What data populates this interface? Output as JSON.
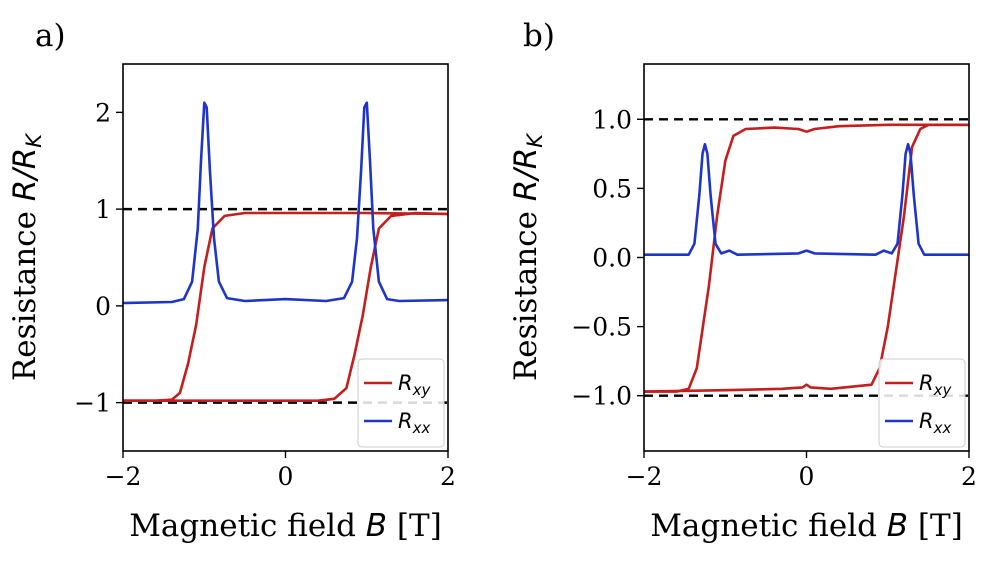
{
  "colors": {
    "rxy": "#c41e1e",
    "rxx": "#1f35c9",
    "dashed": "#000000"
  },
  "chart_data": [
    {
      "type": "line",
      "panel_label": "a)",
      "xlabel_text": "Magnetic field ",
      "xlabel_sym": "B",
      "xlabel_unit": " [T]",
      "ylabel_text": "Resistance ",
      "ylabel_sym": "R/R",
      "ylabel_sub": "K",
      "xlim": [
        -2,
        2
      ],
      "ylim": [
        -1.5,
        2.5
      ],
      "xticks": [
        -2,
        0,
        2
      ],
      "xtick_labels": [
        "−2",
        "0",
        "2"
      ],
      "yticks": [
        -1,
        0,
        1,
        2
      ],
      "ytick_labels": [
        "−1",
        "0",
        "1",
        "2"
      ],
      "hlines": [
        1,
        -1
      ],
      "legend": {
        "position": "lower-right",
        "entries": [
          {
            "sym": "R",
            "sub": "xy"
          },
          {
            "sym": "R",
            "sub": "xx"
          }
        ]
      },
      "series": [
        {
          "name": "Rxy",
          "color_key": "rxy",
          "segments": [
            [
              [
                -2,
                -0.98
              ],
              [
                -1.6,
                -0.98
              ],
              [
                -1.4,
                -0.97
              ],
              [
                -1.3,
                -0.9
              ],
              [
                -1.2,
                -0.6
              ],
              [
                -1.1,
                -0.2
              ],
              [
                -1.0,
                0.4
              ],
              [
                -0.9,
                0.8
              ],
              [
                -0.75,
                0.93
              ],
              [
                -0.5,
                0.96
              ],
              [
                -0.2,
                0.96
              ],
              [
                0.5,
                0.96
              ],
              [
                1.0,
                0.96
              ],
              [
                2,
                0.95
              ]
            ],
            [
              [
                -2,
                -0.98
              ],
              [
                -1.0,
                -0.98
              ],
              [
                0,
                -0.98
              ],
              [
                0.4,
                -0.98
              ],
              [
                0.6,
                -0.96
              ],
              [
                0.75,
                -0.85
              ],
              [
                0.85,
                -0.5
              ],
              [
                0.95,
                -0.1
              ],
              [
                1.05,
                0.4
              ],
              [
                1.15,
                0.8
              ],
              [
                1.3,
                0.93
              ],
              [
                1.6,
                0.96
              ],
              [
                2,
                0.95
              ]
            ]
          ]
        },
        {
          "name": "Rxx",
          "color_key": "rxx",
          "segments": [
            [
              [
                -2,
                0.03
              ],
              [
                -1.4,
                0.04
              ],
              [
                -1.25,
                0.07
              ],
              [
                -1.15,
                0.25
              ],
              [
                -1.08,
                0.8
              ],
              [
                -1.04,
                1.5
              ],
              [
                -1.0,
                2.1
              ],
              [
                -0.97,
                2.05
              ],
              [
                -0.93,
                1.4
              ],
              [
                -0.88,
                0.7
              ],
              [
                -0.82,
                0.25
              ],
              [
                -0.72,
                0.08
              ],
              [
                -0.5,
                0.05
              ],
              [
                0,
                0.07
              ],
              [
                0.5,
                0.05
              ],
              [
                0.72,
                0.08
              ],
              [
                0.82,
                0.25
              ],
              [
                0.88,
                0.7
              ],
              [
                0.93,
                1.4
              ],
              [
                0.97,
                2.05
              ],
              [
                1.0,
                2.1
              ],
              [
                1.04,
                1.5
              ],
              [
                1.08,
                0.8
              ],
              [
                1.15,
                0.25
              ],
              [
                1.25,
                0.07
              ],
              [
                1.4,
                0.05
              ],
              [
                2,
                0.06
              ]
            ]
          ]
        }
      ]
    },
    {
      "type": "line",
      "panel_label": "b)",
      "xlabel_text": "Magnetic field ",
      "xlabel_sym": "B",
      "xlabel_unit": " [T]",
      "ylabel_text": "Resistance ",
      "ylabel_sym": "R/R",
      "ylabel_sub": "K",
      "xlim": [
        -2,
        2
      ],
      "ylim": [
        -1.4,
        1.4
      ],
      "xticks": [
        -2,
        0,
        2
      ],
      "xtick_labels": [
        "−2",
        "0",
        "2"
      ],
      "yticks": [
        -1.0,
        -0.5,
        0.0,
        0.5,
        1.0
      ],
      "ytick_labels": [
        "−1.0",
        "−0.5",
        "0.0",
        "0.5",
        "1.0"
      ],
      "hlines": [
        1,
        -1
      ],
      "legend": {
        "position": "lower-right",
        "entries": [
          {
            "sym": "R",
            "sub": "xy"
          },
          {
            "sym": "R",
            "sub": "xx"
          }
        ]
      },
      "series": [
        {
          "name": "Rxy",
          "color_key": "rxy",
          "segments": [
            [
              [
                -2,
                -0.97
              ],
              [
                -1.6,
                -0.97
              ],
              [
                -1.45,
                -0.95
              ],
              [
                -1.35,
                -0.8
              ],
              [
                -1.2,
                -0.2
              ],
              [
                -1.1,
                0.3
              ],
              [
                -1.0,
                0.7
              ],
              [
                -0.9,
                0.88
              ],
              [
                -0.75,
                0.93
              ],
              [
                -0.4,
                0.94
              ],
              [
                -0.1,
                0.93
              ],
              [
                0,
                0.91
              ],
              [
                0.1,
                0.93
              ],
              [
                0.4,
                0.95
              ],
              [
                1.0,
                0.96
              ],
              [
                2,
                0.96
              ]
            ],
            [
              [
                -2,
                -0.97
              ],
              [
                -1.0,
                -0.96
              ],
              [
                -0.3,
                -0.95
              ],
              [
                -0.05,
                -0.94
              ],
              [
                0,
                -0.92
              ],
              [
                0.05,
                -0.94
              ],
              [
                0.3,
                -0.95
              ],
              [
                0.8,
                -0.92
              ],
              [
                0.9,
                -0.8
              ],
              [
                1.0,
                -0.5
              ],
              [
                1.1,
                -0.1
              ],
              [
                1.2,
                0.3
              ],
              [
                1.3,
                0.8
              ],
              [
                1.4,
                0.93
              ],
              [
                1.5,
                0.96
              ],
              [
                2,
                0.96
              ]
            ]
          ]
        },
        {
          "name": "Rxx",
          "color_key": "rxx",
          "segments": [
            [
              [
                -2,
                0.02
              ],
              [
                -1.45,
                0.02
              ],
              [
                -1.38,
                0.1
              ],
              [
                -1.32,
                0.45
              ],
              [
                -1.28,
                0.75
              ],
              [
                -1.25,
                0.82
              ],
              [
                -1.22,
                0.75
              ],
              [
                -1.18,
                0.45
              ],
              [
                -1.12,
                0.1
              ],
              [
                -1.05,
                0.03
              ],
              [
                -0.95,
                0.05
              ],
              [
                -0.85,
                0.02
              ],
              [
                -0.1,
                0.03
              ],
              [
                0,
                0.05
              ],
              [
                0.1,
                0.03
              ],
              [
                0.85,
                0.02
              ],
              [
                0.95,
                0.05
              ],
              [
                1.05,
                0.03
              ],
              [
                1.12,
                0.1
              ],
              [
                1.18,
                0.45
              ],
              [
                1.22,
                0.75
              ],
              [
                1.25,
                0.82
              ],
              [
                1.28,
                0.75
              ],
              [
                1.32,
                0.45
              ],
              [
                1.38,
                0.1
              ],
              [
                1.45,
                0.02
              ],
              [
                2,
                0.02
              ]
            ]
          ]
        }
      ]
    }
  ]
}
